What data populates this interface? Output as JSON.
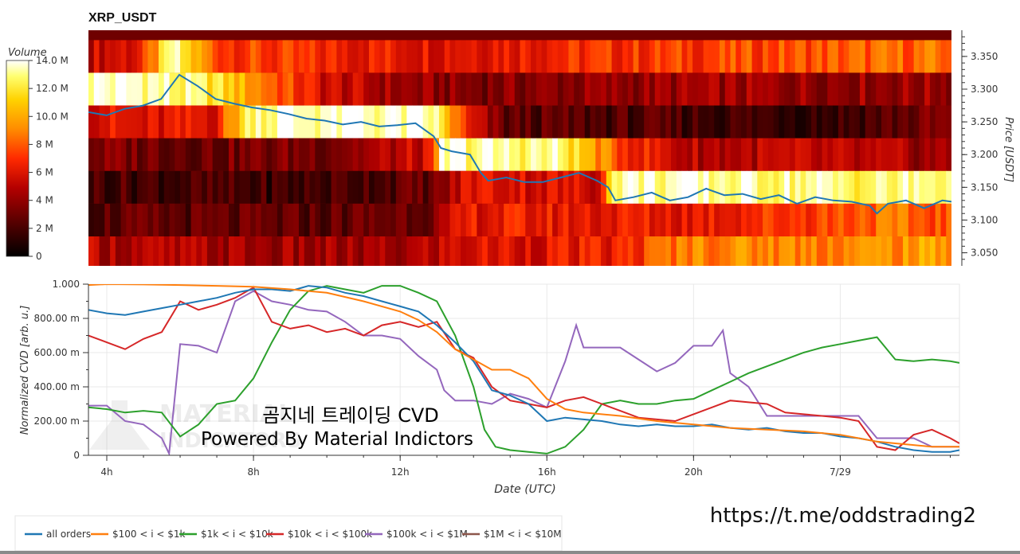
{
  "chart_title": "XRP_USDT",
  "watermark": {
    "korean_line": "곰지네 트레이딩 CVD",
    "powered_line": "Powered By Material Indictors",
    "logo_text_1": "MATERIAL",
    "logo_text_2": "INDICATORS"
  },
  "telegram_link": "https://t.me/oddstrading2",
  "colors": {
    "all_orders": "#1f77b4",
    "band_100_1k": "#ff7f0e",
    "band_1k_10k": "#2ca02c",
    "band_10k_100k": "#d62728",
    "band_100k_1m": "#9467bd",
    "band_1m_10m": "#8c564b",
    "price_line": "#1f77b4"
  },
  "chart_data": [
    {
      "type": "heatmap",
      "title": "XRP_USDT",
      "colorbar": {
        "label": "Volume",
        "ticks": [
          "0",
          "2 M",
          "4 M",
          "6 M",
          "8 M",
          "10.0 M",
          "12.0 M",
          "14.0 M"
        ],
        "range": [
          0,
          14000000
        ]
      },
      "ylabel": "Price [USDT]",
      "y_ticks": [
        "3.050",
        "3.100",
        "3.150",
        "3.200",
        "3.250",
        "3.300",
        "3.350"
      ],
      "ylim": [
        3.03,
        3.39
      ],
      "xlim_hours": [
        3.5,
        27.25
      ],
      "price_bins": [
        3.35,
        3.3,
        3.25,
        3.2,
        3.15,
        3.1,
        3.05
      ],
      "heat_profile": [
        [
          [
            3.5,
            0.38
          ],
          [
            5.0,
            0.45
          ],
          [
            5.8,
            0.95
          ],
          [
            7.0,
            0.55
          ],
          [
            9.5,
            0.48
          ],
          [
            13.0,
            0.45
          ],
          [
            20.0,
            0.52
          ],
          [
            27.25,
            0.6
          ]
        ],
        [
          [
            3.5,
            0.98
          ],
          [
            5.0,
            0.97
          ],
          [
            7.0,
            0.85
          ],
          [
            8.5,
            0.6
          ],
          [
            10.0,
            0.4
          ],
          [
            12.0,
            0.3
          ],
          [
            14.0,
            0.25
          ],
          [
            20.0,
            0.3
          ],
          [
            27.25,
            0.3
          ]
        ],
        [
          [
            3.5,
            0.45
          ],
          [
            5.0,
            0.4
          ],
          [
            7.0,
            0.45
          ],
          [
            8.0,
            0.95
          ],
          [
            10.5,
            0.98
          ],
          [
            13.0,
            0.95
          ],
          [
            14.0,
            0.4
          ],
          [
            15.0,
            0.18
          ],
          [
            20.0,
            0.14
          ],
          [
            24.0,
            0.12
          ],
          [
            27.25,
            0.25
          ]
        ],
        [
          [
            3.5,
            0.25
          ],
          [
            7.0,
            0.22
          ],
          [
            10.0,
            0.25
          ],
          [
            13.0,
            0.4
          ],
          [
            13.2,
            0.95
          ],
          [
            16.5,
            0.92
          ],
          [
            18.0,
            0.55
          ],
          [
            20.0,
            0.35
          ],
          [
            23.0,
            0.35
          ],
          [
            27.25,
            0.3
          ]
        ],
        [
          [
            3.5,
            0.15
          ],
          [
            9.0,
            0.12
          ],
          [
            13.0,
            0.2
          ],
          [
            14.0,
            0.45
          ],
          [
            17.5,
            0.4
          ],
          [
            18.0,
            0.96
          ],
          [
            23.0,
            0.94
          ],
          [
            25.0,
            0.9
          ],
          [
            27.25,
            0.95
          ]
        ],
        [
          [
            3.5,
            0.18
          ],
          [
            10.0,
            0.18
          ],
          [
            13.0,
            0.25
          ],
          [
            14.0,
            0.45
          ],
          [
            20.0,
            0.45
          ],
          [
            24.0,
            0.55
          ],
          [
            25.0,
            0.6
          ],
          [
            27.25,
            0.55
          ]
        ],
        [
          [
            3.5,
            0.35
          ],
          [
            9.0,
            0.3
          ],
          [
            12.0,
            0.3
          ],
          [
            14.0,
            0.42
          ],
          [
            18.0,
            0.45
          ],
          [
            20.0,
            0.65
          ],
          [
            25.0,
            0.65
          ],
          [
            27.25,
            0.7
          ]
        ]
      ],
      "price_series": {
        "x_hours": [
          3.5,
          4.0,
          4.5,
          5.0,
          5.5,
          6.0,
          6.5,
          7.0,
          7.5,
          8.0,
          8.5,
          9.0,
          9.5,
          10.0,
          10.5,
          11.0,
          11.5,
          12.0,
          12.5,
          13.0,
          13.2,
          13.5,
          14.0,
          14.3,
          14.5,
          15.0,
          15.5,
          16.0,
          16.5,
          17.0,
          17.5,
          17.8,
          18.0,
          18.5,
          19.0,
          19.5,
          20.0,
          20.5,
          21.0,
          21.5,
          22.0,
          22.5,
          23.0,
          23.5,
          24.0,
          24.5,
          25.0,
          25.2,
          25.5,
          26.0,
          26.5,
          27.0,
          27.25
        ],
        "y": [
          3.265,
          3.26,
          3.27,
          3.275,
          3.285,
          3.322,
          3.305,
          3.285,
          3.278,
          3.272,
          3.268,
          3.262,
          3.255,
          3.252,
          3.246,
          3.25,
          3.243,
          3.245,
          3.248,
          3.228,
          3.21,
          3.205,
          3.2,
          3.172,
          3.16,
          3.165,
          3.158,
          3.158,
          3.165,
          3.172,
          3.16,
          3.15,
          3.13,
          3.135,
          3.142,
          3.13,
          3.135,
          3.148,
          3.138,
          3.14,
          3.132,
          3.138,
          3.125,
          3.135,
          3.13,
          3.128,
          3.122,
          3.11,
          3.125,
          3.13,
          3.118,
          3.13,
          3.128
        ]
      }
    },
    {
      "type": "line",
      "ylabel": "Normalized CVD [arb. u.]",
      "xlabel": "Date (UTC)",
      "x_ticks": [
        {
          "value": 4,
          "label": "4h"
        },
        {
          "value": 8,
          "label": "8h"
        },
        {
          "value": 12,
          "label": "12h"
        },
        {
          "value": 16,
          "label": "16h"
        },
        {
          "value": 20,
          "label": "20h"
        },
        {
          "value": 24,
          "label": "7/29"
        }
      ],
      "y_ticks": [
        "0",
        "200.00 m",
        "400.00 m",
        "600.00 m",
        "800.00 m",
        "1.000"
      ],
      "ylim": [
        0,
        1.0
      ],
      "xlim": [
        3.5,
        27.25
      ],
      "grid": true,
      "legend_position": "bottom-left",
      "legend": [
        "all orders",
        "$100 < i < $1k",
        "$1k < i < $10k",
        "$10k < i < $100k",
        "$100k < i < $1M",
        "$1M < i < $10M"
      ],
      "series": [
        {
          "name": "all orders",
          "x": [
            3.5,
            4.0,
            4.5,
            5.0,
            5.5,
            6.0,
            6.5,
            7.0,
            7.5,
            8.0,
            8.5,
            9.0,
            9.5,
            10.0,
            10.5,
            11.0,
            11.5,
            12.0,
            12.5,
            13.0,
            13.5,
            14.0,
            14.5,
            15.0,
            15.5,
            16.0,
            16.5,
            17.0,
            17.5,
            18.0,
            18.5,
            19.0,
            19.5,
            20.0,
            20.5,
            21.0,
            21.5,
            22.0,
            22.5,
            23.0,
            23.5,
            24.0,
            24.5,
            25.0,
            25.5,
            26.0,
            26.5,
            27.0,
            27.25
          ],
          "y": [
            0.85,
            0.83,
            0.82,
            0.84,
            0.86,
            0.88,
            0.9,
            0.92,
            0.95,
            0.97,
            0.97,
            0.96,
            0.99,
            0.98,
            0.95,
            0.93,
            0.9,
            0.87,
            0.84,
            0.76,
            0.66,
            0.55,
            0.38,
            0.35,
            0.3,
            0.2,
            0.22,
            0.21,
            0.2,
            0.18,
            0.17,
            0.18,
            0.17,
            0.17,
            0.18,
            0.16,
            0.15,
            0.16,
            0.14,
            0.13,
            0.13,
            0.11,
            0.1,
            0.08,
            0.05,
            0.03,
            0.02,
            0.02,
            0.03
          ]
        },
        {
          "name": "$100 < i < $1k",
          "x": [
            3.5,
            4.0,
            5.0,
            6.0,
            7.0,
            8.0,
            9.0,
            10.0,
            11.0,
            12.0,
            12.5,
            13.0,
            13.5,
            14.0,
            14.5,
            15.0,
            15.5,
            16.0,
            16.5,
            17.0,
            18.0,
            19.0,
            20.0,
            21.0,
            22.0,
            23.0,
            24.0,
            24.5,
            25.0,
            25.5,
            26.0,
            26.5,
            27.0,
            27.25
          ],
          "y": [
            0.995,
            1.0,
            0.998,
            0.995,
            0.99,
            0.985,
            0.97,
            0.95,
            0.9,
            0.84,
            0.79,
            0.72,
            0.62,
            0.56,
            0.5,
            0.5,
            0.45,
            0.33,
            0.27,
            0.25,
            0.23,
            0.2,
            0.18,
            0.16,
            0.15,
            0.14,
            0.12,
            0.1,
            0.08,
            0.07,
            0.06,
            0.05,
            0.05,
            0.05
          ]
        },
        {
          "name": "$1k < i < $10k",
          "x": [
            3.5,
            4.0,
            4.5,
            5.0,
            5.5,
            6.0,
            6.5,
            7.0,
            7.5,
            8.0,
            8.5,
            9.0,
            9.5,
            10.0,
            10.5,
            11.0,
            11.5,
            12.0,
            12.5,
            13.0,
            13.5,
            14.0,
            14.3,
            14.6,
            15.0,
            15.5,
            16.0,
            16.5,
            17.0,
            17.5,
            18.0,
            18.5,
            19.0,
            19.5,
            20.0,
            20.5,
            21.0,
            21.5,
            22.0,
            22.5,
            23.0,
            23.5,
            24.0,
            24.5,
            25.0,
            25.5,
            26.0,
            26.5,
            27.0,
            27.25
          ],
          "y": [
            0.28,
            0.27,
            0.25,
            0.26,
            0.25,
            0.11,
            0.18,
            0.3,
            0.32,
            0.45,
            0.66,
            0.85,
            0.96,
            0.99,
            0.97,
            0.95,
            0.99,
            0.99,
            0.95,
            0.9,
            0.7,
            0.4,
            0.15,
            0.05,
            0.03,
            0.02,
            0.01,
            0.05,
            0.15,
            0.3,
            0.32,
            0.3,
            0.3,
            0.32,
            0.33,
            0.38,
            0.43,
            0.48,
            0.52,
            0.56,
            0.6,
            0.63,
            0.65,
            0.67,
            0.69,
            0.56,
            0.55,
            0.56,
            0.55,
            0.54
          ]
        },
        {
          "name": "$10k < i < $100k",
          "x": [
            3.5,
            4.0,
            4.5,
            5.0,
            5.5,
            6.0,
            6.5,
            7.0,
            7.5,
            8.0,
            8.5,
            9.0,
            9.5,
            10.0,
            10.5,
            11.0,
            11.5,
            12.0,
            12.5,
            13.0,
            13.5,
            14.0,
            14.5,
            15.0,
            15.5,
            16.0,
            16.5,
            17.0,
            17.5,
            18.0,
            18.5,
            19.0,
            19.5,
            20.0,
            20.5,
            21.0,
            21.5,
            22.0,
            22.5,
            23.0,
            23.5,
            24.0,
            24.5,
            25.0,
            25.5,
            26.0,
            26.5,
            27.0,
            27.25
          ],
          "y": [
            0.7,
            0.66,
            0.62,
            0.68,
            0.72,
            0.9,
            0.85,
            0.88,
            0.92,
            0.98,
            0.78,
            0.74,
            0.76,
            0.72,
            0.74,
            0.7,
            0.76,
            0.78,
            0.75,
            0.78,
            0.62,
            0.57,
            0.4,
            0.32,
            0.3,
            0.28,
            0.32,
            0.34,
            0.3,
            0.26,
            0.22,
            0.21,
            0.2,
            0.24,
            0.28,
            0.32,
            0.31,
            0.3,
            0.25,
            0.24,
            0.23,
            0.22,
            0.2,
            0.05,
            0.03,
            0.12,
            0.15,
            0.1,
            0.07
          ]
        },
        {
          "name": "$100k < i < $1M",
          "x": [
            3.5,
            4.0,
            4.5,
            5.0,
            5.5,
            5.7,
            6.0,
            6.5,
            7.0,
            7.5,
            8.0,
            8.5,
            9.0,
            9.5,
            10.0,
            10.5,
            11.0,
            11.5,
            12.0,
            12.5,
            13.0,
            13.2,
            13.5,
            14.0,
            14.5,
            15.0,
            15.5,
            16.0,
            16.5,
            16.8,
            17.0,
            17.5,
            18.0,
            18.5,
            19.0,
            19.5,
            20.0,
            20.5,
            20.8,
            21.0,
            21.5,
            22.0,
            22.5,
            23.0,
            23.5,
            24.0,
            24.5,
            25.0,
            25.5,
            26.0,
            26.5,
            27.0,
            27.25
          ],
          "y": [
            0.29,
            0.29,
            0.2,
            0.18,
            0.1,
            0.01,
            0.65,
            0.64,
            0.6,
            0.9,
            0.96,
            0.9,
            0.88,
            0.85,
            0.84,
            0.78,
            0.7,
            0.7,
            0.68,
            0.58,
            0.5,
            0.38,
            0.32,
            0.32,
            0.3,
            0.36,
            0.33,
            0.28,
            0.55,
            0.76,
            0.63,
            0.63,
            0.63,
            0.56,
            0.49,
            0.54,
            0.64,
            0.64,
            0.73,
            0.48,
            0.4,
            0.23,
            0.23,
            0.23,
            0.23,
            0.23,
            0.23,
            0.1,
            0.1,
            0.1,
            0.05,
            0.05,
            0.05
          ]
        },
        {
          "name": "$1M < i < $10M",
          "x": [],
          "y": []
        }
      ]
    }
  ]
}
